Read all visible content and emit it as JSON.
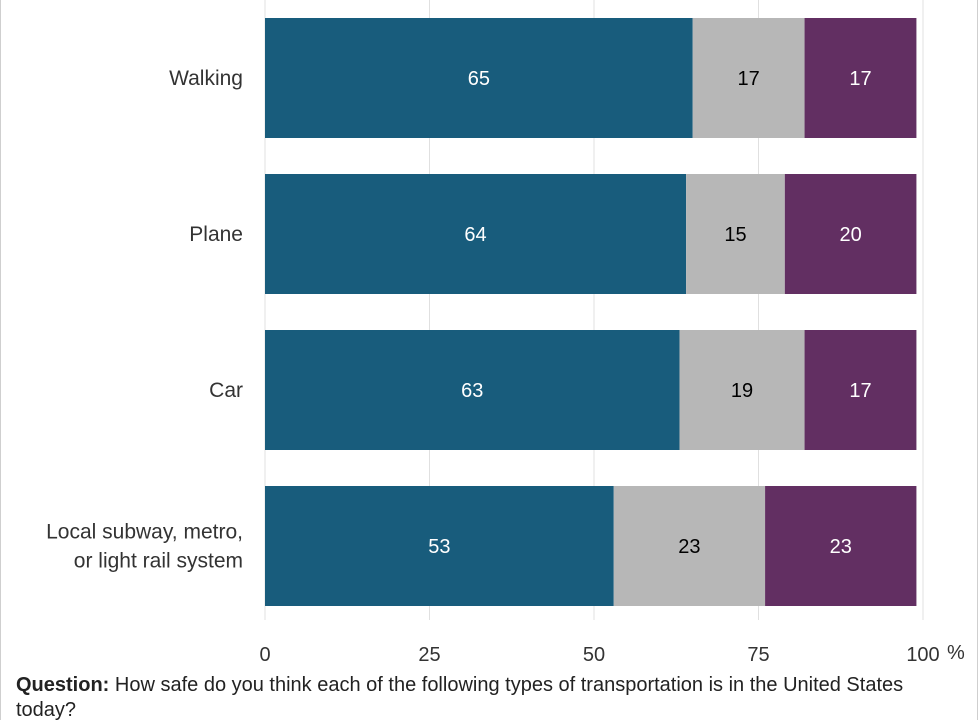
{
  "chart_data": {
    "type": "bar",
    "orientation": "horizontal",
    "stacked": true,
    "categories": [
      "Walking",
      "Plane",
      "Car",
      "Local subway, metro, or light rail system"
    ],
    "category_lines": [
      [
        "Walking"
      ],
      [
        "Plane"
      ],
      [
        "Car"
      ],
      [
        "Local subway, metro,",
        "or light rail system"
      ]
    ],
    "series": [
      {
        "values": [
          65,
          64,
          63,
          53
        ],
        "color": "#185c7c",
        "label_color": "#ffffff"
      },
      {
        "values": [
          17,
          15,
          19,
          23
        ],
        "color": "#b7b7b7",
        "label_color": "#000000"
      },
      {
        "values": [
          17,
          20,
          17,
          23
        ],
        "color": "#622f62",
        "label_color": "#ffffff"
      }
    ],
    "xlim": [
      0,
      100
    ],
    "x_ticks": [
      {
        "value": 0,
        "label": "0"
      },
      {
        "value": 25,
        "label": "25"
      },
      {
        "value": 50,
        "label": "50"
      },
      {
        "value": 75,
        "label": "75"
      },
      {
        "value": 100,
        "label": "100"
      }
    ],
    "x_unit": "%",
    "grid": true,
    "grid_color": "#e0e0e0"
  },
  "question": {
    "label": "Question:",
    "text": " How safe do you think each of the following types of transportation is in the United States today?"
  }
}
